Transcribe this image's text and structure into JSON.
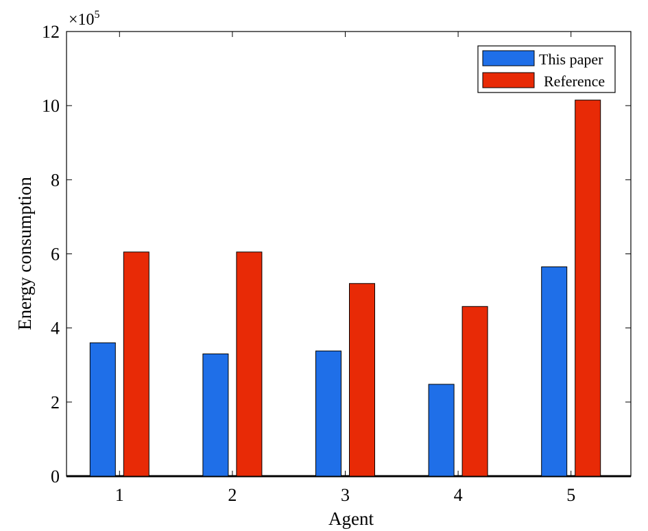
{
  "chart_data": {
    "type": "bar",
    "xlabel": "Agent",
    "ylabel": "Energy consumption",
    "y_multiplier_base": "×10",
    "y_multiplier_exp": "5",
    "categories": [
      "1",
      "2",
      "3",
      "4",
      "5"
    ],
    "ylim": [
      0,
      12
    ],
    "yticks": [
      0,
      2,
      4,
      6,
      8,
      10,
      12
    ],
    "grid": false,
    "legend_position": "top-right",
    "series": [
      {
        "name": "This paper",
        "color": "#1f6fe8",
        "values": [
          3.6,
          3.3,
          3.38,
          2.48,
          5.65
        ]
      },
      {
        "name": "Reference",
        "color": "#e82a06",
        "values": [
          6.05,
          6.05,
          5.2,
          4.58,
          10.15
        ]
      }
    ]
  }
}
